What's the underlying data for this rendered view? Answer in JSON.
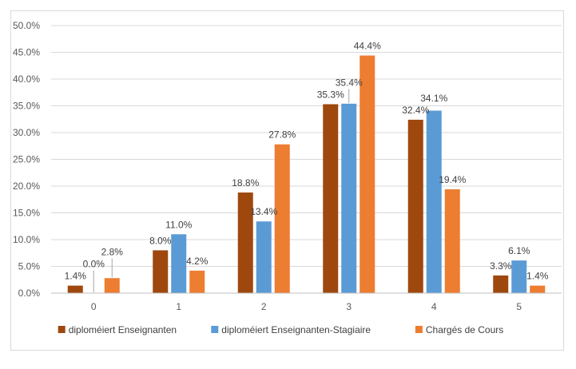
{
  "chart_data": {
    "type": "bar",
    "title": "",
    "xlabel": "",
    "ylabel": "",
    "categories": [
      "0",
      "1",
      "2",
      "3",
      "4",
      "5"
    ],
    "ylim": [
      0,
      50
    ],
    "ytick_step": 5,
    "ytick_labels": [
      "0.0%",
      "5.0%",
      "10.0%",
      "15.0%",
      "20.0%",
      "25.0%",
      "30.0%",
      "35.0%",
      "40.0%",
      "45.0%",
      "50.0%"
    ],
    "grid": true,
    "legend_position": "bottom",
    "series": [
      {
        "name": "diploméiert Enseignanten",
        "color": "#9e480e",
        "values": [
          1.4,
          8.0,
          18.8,
          35.3,
          32.4,
          3.3
        ],
        "labels": [
          "1.4%",
          "8.0%",
          "18.8%",
          "35.3%",
          "32.4%",
          "3.3%"
        ]
      },
      {
        "name": "diploméiert Enseignanten-Stagiaire",
        "color": "#5b9bd5",
        "values": [
          0.0,
          11.0,
          13.4,
          35.4,
          34.1,
          6.1
        ],
        "labels": [
          "0.0%",
          "11.0%",
          "13.4%",
          "35.4%",
          "34.1%",
          "6.1%"
        ]
      },
      {
        "name": "Chargés de Cours",
        "color": "#ed7d31",
        "values": [
          2.8,
          4.2,
          27.8,
          44.4,
          19.4,
          1.4
        ],
        "labels": [
          "2.8%",
          "4.2%",
          "27.8%",
          "44.4%",
          "19.4%",
          "1.4%"
        ]
      }
    ]
  }
}
